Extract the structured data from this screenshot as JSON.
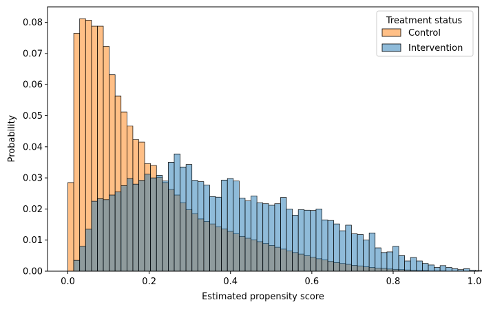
{
  "chart_data": {
    "type": "bar",
    "xlabel": "Estimated propensity score",
    "ylabel": "Probability",
    "xlim": [
      -0.05,
      1.01
    ],
    "ylim": [
      0,
      0.085
    ],
    "bin_width": 0.01453,
    "bin_start": 0.0,
    "xticks": [
      0.0,
      0.2,
      0.4,
      0.6,
      0.8,
      1.0
    ],
    "xtick_labels": [
      "0.0",
      "0.2",
      "0.4",
      "0.6",
      "0.8",
      "1.0"
    ],
    "yticks": [
      0.0,
      0.01,
      0.02,
      0.03,
      0.04,
      0.05,
      0.06,
      0.07,
      0.08
    ],
    "ytick_labels": [
      "0.00",
      "0.01",
      "0.02",
      "0.03",
      "0.04",
      "0.05",
      "0.06",
      "0.07",
      "0.08"
    ],
    "legend": {
      "title": "Treatment status",
      "placement": "top-right",
      "entries": [
        "Control",
        "Intervention"
      ]
    },
    "series": [
      {
        "name": "Control",
        "color": "#ff7f0e",
        "values": [
          0.0285,
          0.0765,
          0.0812,
          0.0807,
          0.0788,
          0.0788,
          0.0723,
          0.0632,
          0.0563,
          0.0512,
          0.0467,
          0.0423,
          0.0415,
          0.0346,
          0.034,
          0.0302,
          0.0285,
          0.0263,
          0.0245,
          0.022,
          0.0198,
          0.0185,
          0.0168,
          0.016,
          0.0152,
          0.0143,
          0.0136,
          0.0128,
          0.012,
          0.0112,
          0.0106,
          0.0101,
          0.0095,
          0.0089,
          0.0083,
          0.0077,
          0.0071,
          0.0065,
          0.006,
          0.0055,
          0.005,
          0.0045,
          0.004,
          0.0036,
          0.0032,
          0.0028,
          0.0025,
          0.0022,
          0.0019,
          0.0017,
          0.0014,
          0.0012,
          0.001,
          0.0009,
          0.0007,
          0.0006,
          0.0005,
          0.0004,
          0.0003,
          0.0002,
          0.0002,
          0.0001,
          0.0001,
          0.0001,
          0.0,
          0.0,
          0.0
        ]
      },
      {
        "name": "Intervention",
        "color": "#1f77b4",
        "values": [
          0.0,
          0.0035,
          0.008,
          0.0135,
          0.0225,
          0.0233,
          0.023,
          0.0245,
          0.0255,
          0.0275,
          0.0298,
          0.028,
          0.0292,
          0.0312,
          0.03,
          0.0308,
          0.029,
          0.035,
          0.0377,
          0.0335,
          0.0343,
          0.0292,
          0.0288,
          0.0277,
          0.024,
          0.0238,
          0.0293,
          0.0298,
          0.029,
          0.0235,
          0.0226,
          0.0242,
          0.022,
          0.0217,
          0.0212,
          0.0217,
          0.0237,
          0.02,
          0.018,
          0.0198,
          0.0196,
          0.0195,
          0.02,
          0.0165,
          0.0163,
          0.0152,
          0.013,
          0.0148,
          0.012,
          0.0118,
          0.01,
          0.0123,
          0.0075,
          0.006,
          0.0062,
          0.008,
          0.005,
          0.0033,
          0.0044,
          0.0033,
          0.0025,
          0.002,
          0.0012,
          0.0018,
          0.0012,
          0.0008,
          0.0005,
          0.0008,
          0.0003,
          0.0002,
          0.0003,
          0.001,
          0.0015,
          0.0008,
          0.0004,
          0.0011,
          0.0008
        ]
      }
    ]
  }
}
